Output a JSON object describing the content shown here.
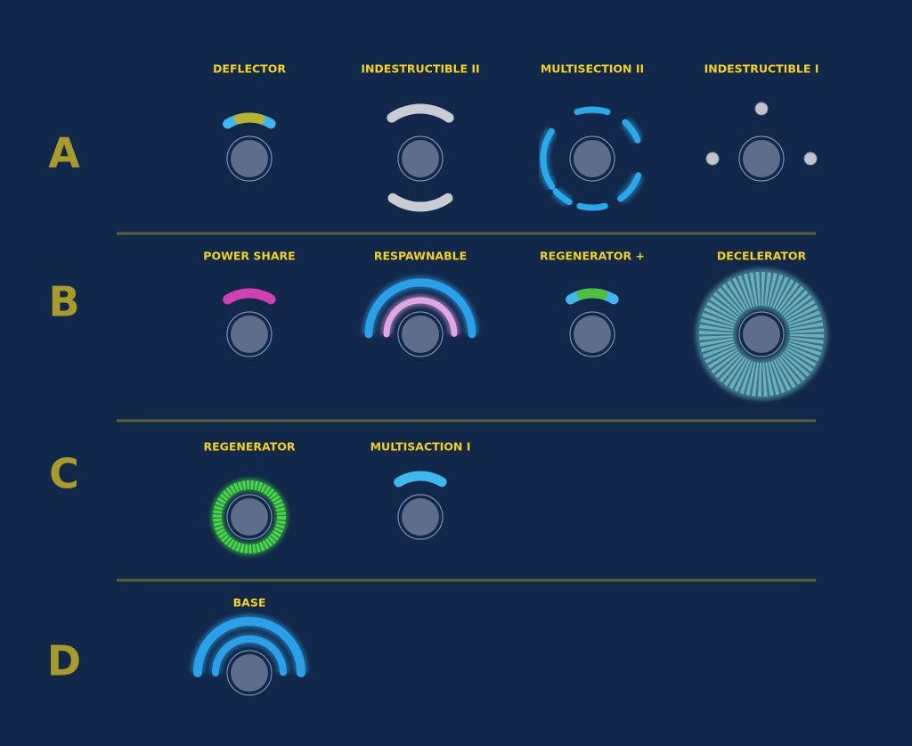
{
  "rows": [
    {
      "label": "A",
      "items": [
        "DEFLECTOR",
        "INDESTRUCTIBLE II",
        "MULTISECTION II",
        "INDESTRUCTIBLE I"
      ]
    },
    {
      "label": "B",
      "items": [
        "POWER SHARE",
        "RESPAWNABLE",
        "REGENERATOR +",
        "DECELERATOR"
      ]
    },
    {
      "label": "C",
      "items": [
        "REGENERATOR",
        "MULTISACTION I"
      ]
    },
    {
      "label": "D",
      "items": [
        "BASE"
      ]
    }
  ]
}
